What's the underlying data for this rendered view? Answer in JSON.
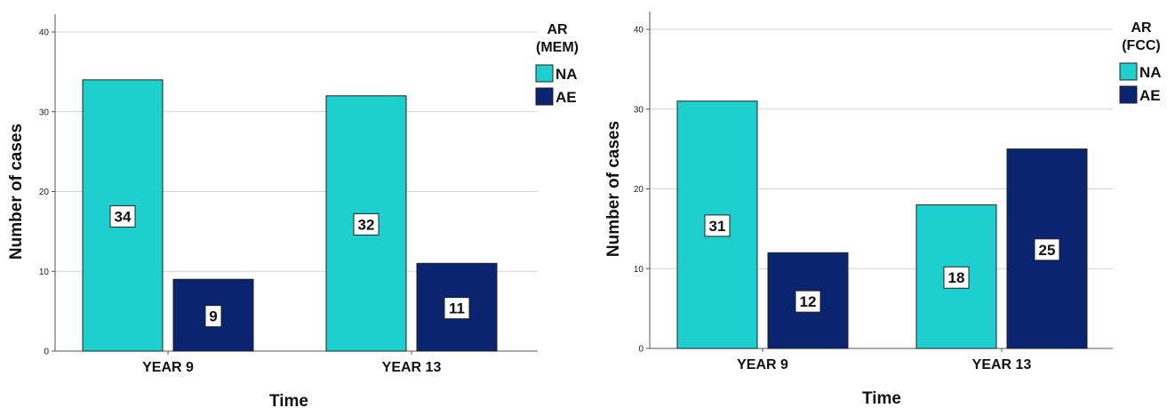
{
  "chart_data": [
    {
      "type": "bar",
      "categories": [
        "YEAR 9",
        "YEAR 13"
      ],
      "series": [
        {
          "name": "NA",
          "values": [
            34,
            32
          ]
        },
        {
          "name": "AE",
          "values": [
            9,
            11
          ]
        }
      ],
      "xlabel": "Time",
      "ylabel": "Number of cases",
      "ylim": [
        0,
        40
      ],
      "yticks": [
        0,
        10,
        20,
        30,
        40
      ],
      "legend_title": [
        "AR",
        "(MEM)"
      ],
      "legend_position": "top-right",
      "grid": true,
      "colors": [
        "#1ecfcf",
        "#0b2470"
      ]
    },
    {
      "type": "bar",
      "categories": [
        "YEAR 9",
        "YEAR 13"
      ],
      "series": [
        {
          "name": "NA",
          "values": [
            31,
            18
          ]
        },
        {
          "name": "AE",
          "values": [
            12,
            25
          ]
        }
      ],
      "xlabel": "Time",
      "ylabel": "Number of cases",
      "ylim": [
        0,
        40
      ],
      "yticks": [
        0,
        10,
        20,
        30,
        40
      ],
      "legend_title": [
        "AR",
        "(FCC)"
      ],
      "legend_position": "top-right",
      "grid": true,
      "colors": [
        "#1ecfcf",
        "#0b2470"
      ]
    }
  ]
}
